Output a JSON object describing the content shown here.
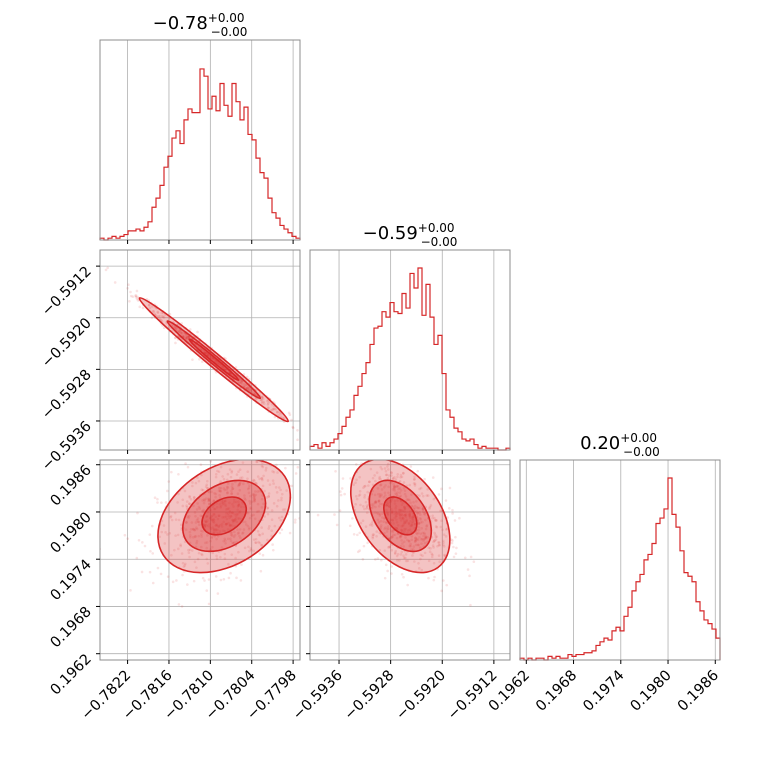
{
  "chart_data": {
    "type": "corner",
    "accent_color": "#d62728",
    "grid": true,
    "parameters": [
      {
        "title_value": "−0.78",
        "title_plus": "+0.00",
        "title_minus": "−0.00",
        "range": [
          -0.7826,
          -0.7797
        ],
        "ticks": [
          -0.7822,
          -0.7816,
          -0.781,
          -0.7804,
          -0.7798
        ],
        "tick_labels": [
          "−0.7822",
          "−0.7816",
          "−0.7810",
          "−0.7804",
          "−0.7798"
        ]
      },
      {
        "title_value": "−0.59",
        "title_plus": "+0.00",
        "title_minus": "−0.00",
        "range": [
          -0.59405,
          -0.59095
        ],
        "ticks": [
          -0.5936,
          -0.5928,
          -0.592,
          -0.5912
        ],
        "tick_labels": [
          "−0.5936",
          "−0.5928",
          "−0.5920",
          "−0.5912"
        ]
      },
      {
        "title_value": "0.20",
        "title_plus": "+0.00",
        "title_minus": "−0.00",
        "range": [
          0.19612,
          0.19866
        ],
        "ticks": [
          0.1962,
          0.1968,
          0.1974,
          0.198,
          0.1986
        ],
        "tick_labels": [
          "0.1962",
          "0.1968",
          "0.1974",
          "0.1980",
          "0.1986"
        ]
      }
    ],
    "histograms": [
      [
        0.01,
        0.0,
        0.01,
        0.02,
        0.01,
        0.02,
        0.03,
        0.05,
        0.05,
        0.06,
        0.05,
        0.07,
        0.1,
        0.18,
        0.23,
        0.3,
        0.4,
        0.46,
        0.56,
        0.6,
        0.53,
        0.66,
        0.72,
        0.7,
        0.7,
        0.94,
        0.9,
        0.72,
        0.79,
        0.71,
        0.86,
        0.74,
        0.68,
        0.86,
        0.76,
        0.66,
        0.73,
        0.58,
        0.55,
        0.45,
        0.37,
        0.34,
        0.23,
        0.15,
        0.12,
        0.08,
        0.06,
        0.04,
        0.02,
        0.01
      ],
      [
        0.02,
        0.03,
        0.01,
        0.04,
        0.02,
        0.04,
        0.06,
        0.09,
        0.13,
        0.18,
        0.22,
        0.3,
        0.35,
        0.42,
        0.48,
        0.58,
        0.67,
        0.68,
        0.76,
        0.73,
        0.81,
        0.76,
        0.75,
        0.86,
        0.78,
        0.97,
        0.89,
        1.0,
        0.74,
        0.91,
        0.73,
        0.58,
        0.63,
        0.42,
        0.22,
        0.18,
        0.12,
        0.1,
        0.06,
        0.05,
        0.06,
        0.03,
        0.01,
        0.02,
        0.01,
        0.01,
        0.01,
        0.0,
        0.0,
        0.01
      ],
      [
        0.01,
        0.0,
        0.01,
        0.0,
        0.01,
        0.01,
        0.0,
        0.02,
        0.01,
        0.02,
        0.01,
        0.01,
        0.03,
        0.02,
        0.03,
        0.03,
        0.04,
        0.04,
        0.05,
        0.08,
        0.1,
        0.12,
        0.11,
        0.16,
        0.18,
        0.16,
        0.24,
        0.29,
        0.38,
        0.43,
        0.47,
        0.55,
        0.58,
        0.64,
        0.75,
        0.78,
        0.83,
        1.0,
        0.8,
        0.73,
        0.6,
        0.48,
        0.46,
        0.43,
        0.32,
        0.27,
        0.22,
        0.2,
        0.17,
        0.12
      ]
    ],
    "pairs": [
      {
        "row": 1,
        "col": 0,
        "mean": [
          -0.78095,
          -0.59265
        ],
        "sd": [
          0.00045,
          0.0004
        ],
        "corr": -0.99
      },
      {
        "row": 2,
        "col": 0,
        "mean": [
          -0.7808,
          0.19795
        ],
        "sd": [
          0.0004,
          0.0003
        ],
        "corr": 0.35
      },
      {
        "row": 2,
        "col": 1,
        "mean": [
          -0.59265,
          0.19795
        ],
        "sd": [
          0.00032,
          0.0003
        ],
        "corr": -0.42
      }
    ]
  }
}
